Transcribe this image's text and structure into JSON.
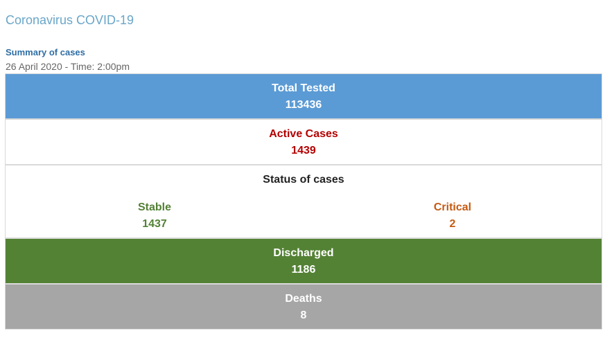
{
  "header": {
    "title": "Coronavirus COVID-19",
    "summary_label": "Summary of cases",
    "date_line": "26 April 2020 - Time: 2:00pm"
  },
  "stats": {
    "total_tested": {
      "label": "Total Tested",
      "value": "113436",
      "color": "#5b9bd5"
    },
    "active_cases": {
      "label": "Active Cases",
      "value": "1439",
      "color": "#b30000"
    },
    "status": {
      "heading": "Status of cases",
      "stable": {
        "label": "Stable",
        "value": "1437",
        "color": "#538135"
      },
      "critical": {
        "label": "Critical",
        "value": "2",
        "color": "#c55a11"
      }
    },
    "discharged": {
      "label": "Discharged",
      "value": "1186",
      "color": "#548235"
    },
    "deaths": {
      "label": "Deaths",
      "value": "8",
      "color": "#a6a6a6"
    }
  }
}
